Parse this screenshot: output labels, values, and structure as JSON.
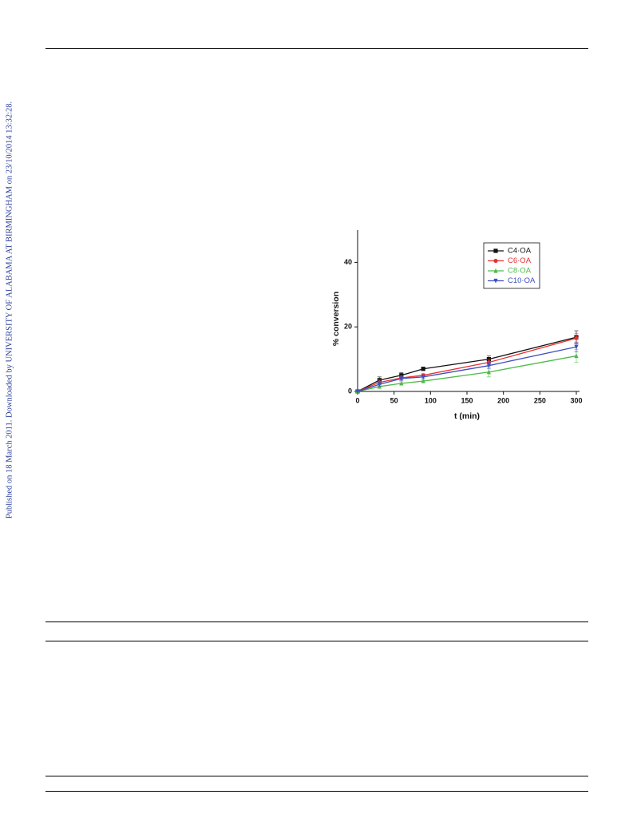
{
  "side_note": "Published on 18 March 2011. Downloaded by UNIVERSITY OF ALABAMA AT BIRMINGHAM on 23/10/2014 13:32:28.",
  "chart_data": {
    "type": "line",
    "x_label": "t (min)",
    "y_label": "% conversion",
    "x": [
      0,
      30,
      60,
      90,
      180,
      300
    ],
    "series": [
      {
        "name": "C4·OA",
        "color": "#111111",
        "marker": "square",
        "values": [
          0,
          3.5,
          5,
          7,
          10,
          16.8
        ],
        "errors": [
          0,
          1,
          0.8,
          0.5,
          1,
          2
        ]
      },
      {
        "name": "C6·OA",
        "color": "#e8312f",
        "marker": "circle",
        "values": [
          0,
          2.8,
          4.2,
          5,
          9,
          16.5
        ],
        "errors": [
          0,
          0.8,
          0.7,
          0.5,
          1,
          1.5
        ]
      },
      {
        "name": "C8·OA",
        "color": "#4cbb47",
        "marker": "triangle-up",
        "values": [
          0,
          1.5,
          2.5,
          3.2,
          6,
          11
        ],
        "errors": [
          0,
          0.5,
          0.5,
          0.5,
          1.5,
          2
        ]
      },
      {
        "name": "C10·OA",
        "color": "#3f4fc0",
        "marker": "triangle-down",
        "values": [
          0,
          2.2,
          4,
          4.5,
          8,
          13.8
        ],
        "errors": [
          0,
          0.6,
          0.6,
          0.5,
          1,
          1.5
        ]
      }
    ],
    "xlim": [
      0,
      300
    ],
    "xticks": [
      0,
      50,
      100,
      150,
      200,
      250,
      300
    ],
    "ylim": [
      0,
      50
    ],
    "yticks": [
      0,
      20,
      40
    ],
    "legend": "upper right"
  }
}
